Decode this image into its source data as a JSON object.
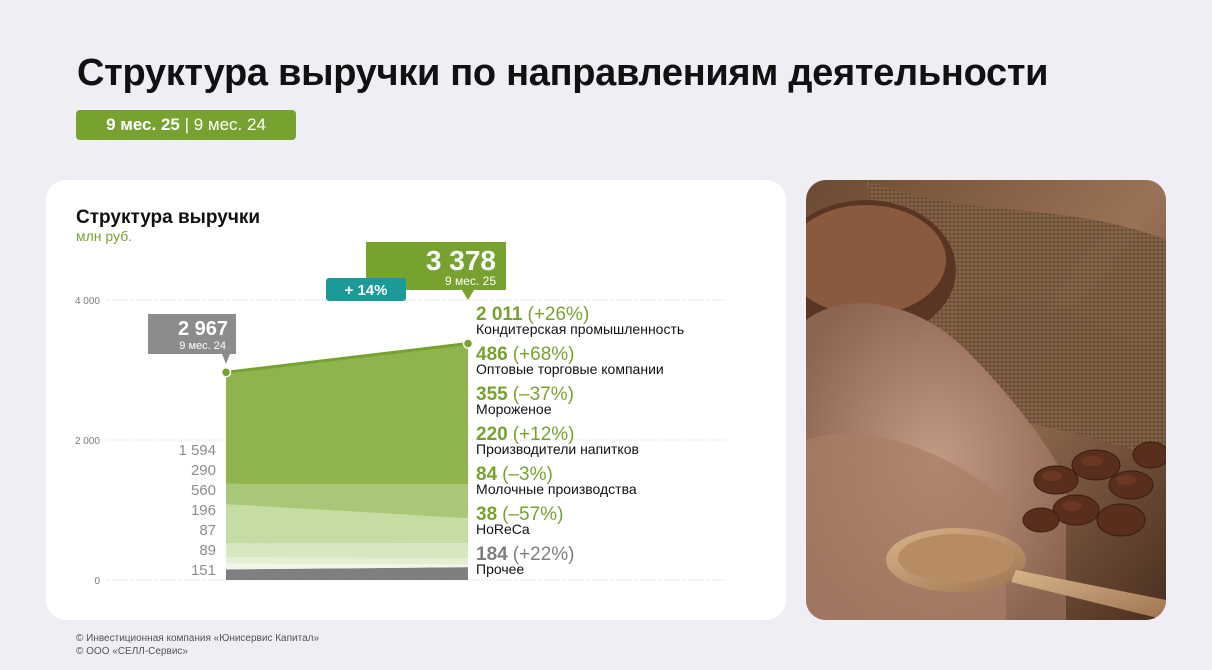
{
  "header": {
    "title": "Структура выручки по направлениям деятельности",
    "period_current": "9 мес. 25",
    "period_sep": " | ",
    "period_prev": "9 мес. 24"
  },
  "chart_card": {
    "title": "Структура выручки",
    "unit": "млн руб."
  },
  "colors": {
    "accent_green": "#78a22f",
    "teal": "#1b9a97",
    "grey": "#8c8c8c"
  },
  "chart_data": {
    "type": "area",
    "title": "Структура выручки",
    "ylabel": "млн руб.",
    "ylim": [
      0,
      4000
    ],
    "y_ticks": [
      "0",
      "2 000",
      "4 000"
    ],
    "x": [
      "9 мес. 24",
      "9 мес. 25"
    ],
    "series": [
      {
        "name": "Прочее",
        "values": [
          151,
          184
        ],
        "color": "#7f7f7f"
      },
      {
        "name": "HoReCa",
        "values": [
          89,
          38
        ],
        "color": "#f1f6e8"
      },
      {
        "name": "Молочные производства",
        "values": [
          87,
          84
        ],
        "color": "#e3eed2"
      },
      {
        "name": "Производители напитков",
        "values": [
          196,
          220
        ],
        "color": "#d7e7bf"
      },
      {
        "name": "Мороженое",
        "values": [
          560,
          355
        ],
        "color": "#c5dca2"
      },
      {
        "name": "Оптовые торговые компании",
        "values": [
          290,
          486
        ],
        "color": "#a9c877"
      },
      {
        "name": "Кондитерская промышленность",
        "values": [
          1594,
          2011
        ],
        "color": "#8fb44e"
      }
    ],
    "left_labels": [
      "1 594",
      "290",
      "560",
      "196",
      "87",
      "89",
      "151"
    ],
    "right_labels": [
      {
        "value": "2 011",
        "change": "(+26%)",
        "name": "Кондитерская промышленность",
        "color": "#78a22f"
      },
      {
        "value": "486",
        "change": "(+68%)",
        "name": "Оптовые торговые компании",
        "color": "#78a22f"
      },
      {
        "value": "355",
        "change": "(–37%)",
        "name": "Мороженое",
        "color": "#78a22f"
      },
      {
        "value": "220",
        "change": "(+12%)",
        "name": "Производители напитков",
        "color": "#78a22f"
      },
      {
        "value": "84",
        "change": "(–3%)",
        "name": "Молочные производства",
        "color": "#78a22f"
      },
      {
        "value": "38",
        "change": "(–57%)",
        "name": "HoReCa",
        "color": "#78a22f"
      },
      {
        "value": "184",
        "change": "(+22%)",
        "name": "Прочее",
        "color": "#7f7f7f"
      }
    ],
    "totals": [
      {
        "value": "2 967",
        "raw": 2967,
        "period": "9 мес. 24"
      },
      {
        "value": "3 378",
        "raw": 3378,
        "period": "9 мес. 25"
      }
    ],
    "growth": "+ 14%"
  },
  "footer": {
    "line1": "© Инвестиционная компания «Юнисервис Капитал»",
    "line2": "© ООО «СЕЛЛ-Сервис»"
  }
}
